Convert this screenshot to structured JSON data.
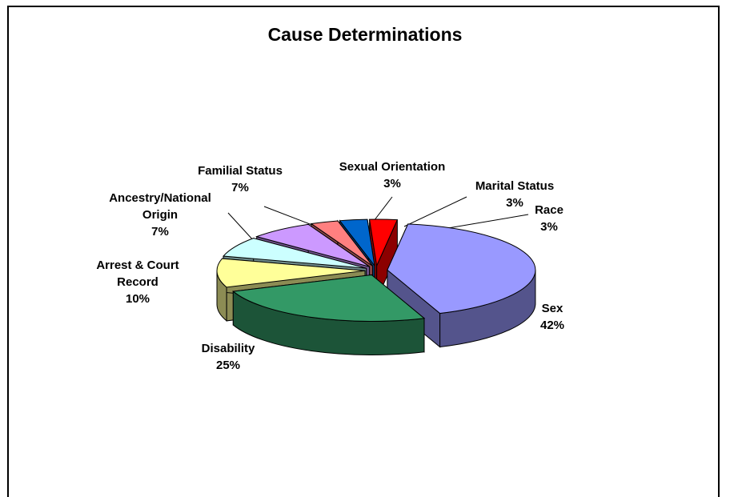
{
  "chart_data": {
    "type": "pie",
    "title": "Cause Determinations",
    "categories": [
      "Sex",
      "Disability",
      "Arrest & Court Record",
      "Ancestry/National Origin",
      "Familial Status",
      "Sexual Orientation",
      "Marital Status",
      "Race"
    ],
    "values": [
      42,
      25,
      10,
      7,
      7,
      3,
      3,
      3
    ],
    "value_labels": [
      "42%",
      "25%",
      "10%",
      "7%",
      "7%",
      "3%",
      "3%",
      "3%"
    ],
    "colors": [
      "#9999ff",
      "#339966",
      "#ffff99",
      "#ccffff",
      "#cc99ff",
      "#ff8080",
      "#0066cc",
      "#ff0000"
    ]
  }
}
